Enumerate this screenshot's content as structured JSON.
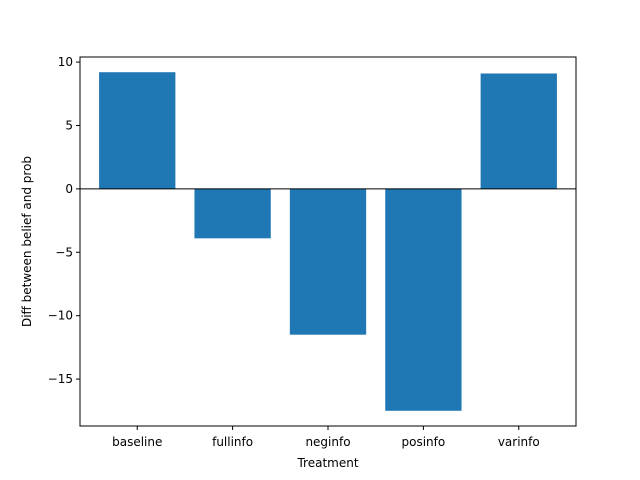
{
  "chart_data": {
    "type": "bar",
    "categories": [
      "baseline",
      "fullinfo",
      "neginfo",
      "posinfo",
      "varinfo"
    ],
    "values": [
      9.2,
      -3.9,
      -11.5,
      -17.5,
      9.1
    ],
    "xlabel": "Treatment",
    "ylabel": "Diff between belief and prob",
    "ylim": [
      -18.7,
      10.4
    ],
    "yticks": [
      10,
      5,
      0,
      -5,
      -10,
      -15
    ],
    "ytick_labels": [
      "10",
      "5",
      "0",
      "−5",
      "−10",
      "−15"
    ],
    "bar_color": "#1f77b4",
    "zero_line": true,
    "grid": false
  }
}
